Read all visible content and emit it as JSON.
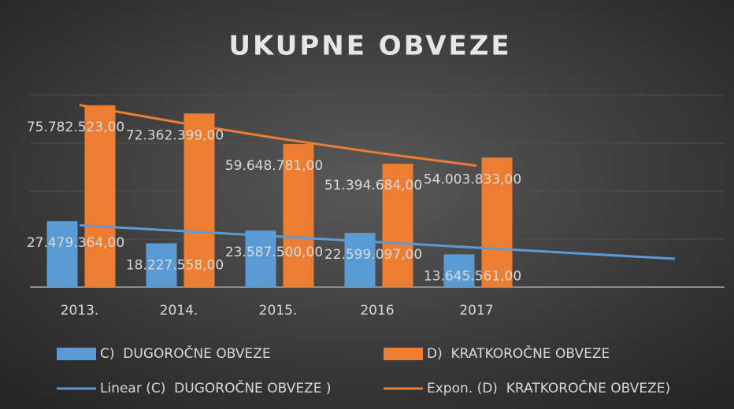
{
  "chart_data": {
    "type": "bar",
    "title": "UKUPNE OBVEZE",
    "categories": [
      "2013.",
      "2014.",
      "2015.",
      "2016",
      "2017",
      null,
      null
    ],
    "series": [
      {
        "name": "C)  DUGOROČNE OBVEZE",
        "color": "#5b9bd5",
        "kind": "bar",
        "values": [
          27479364,
          18227558,
          23587500,
          22599097,
          13645561,
          null,
          null
        ],
        "value_labels": [
          "27.479.364,00",
          "18.227.558,00",
          "23.587.500,00",
          "22.599.097,00",
          "13.645.561,00",
          null,
          null
        ]
      },
      {
        "name": "D)  KRATKOROČNE OBVEZE",
        "color": "#ed7d31",
        "kind": "bar",
        "values": [
          75782523,
          72362399,
          59648781,
          51394684,
          54003833,
          null,
          null
        ],
        "value_labels": [
          "75.782.523,00",
          "72.362.399,00",
          "59.648.781,00",
          "51.394.684,00",
          "54.003.833,00",
          null,
          null
        ]
      },
      {
        "name": "Linear (C)  DUGOROČNE OBVEZE )",
        "color": "#5b9bd5",
        "kind": "line",
        "values": [
          25768000,
          23438000,
          21108000,
          18778000,
          16448000,
          14118000,
          11788000
        ]
      },
      {
        "name": "Expon. (D)  KRATKOROČNE OBVEZE)",
        "color": "#ed7d31",
        "kind": "line",
        "values": [
          75900000,
          68600000,
          62000000,
          56000000,
          50600000,
          null,
          null
        ]
      }
    ],
    "ylim": [
      0,
      80000000
    ],
    "yticks": [
      0,
      20000000,
      40000000,
      60000000,
      80000000
    ],
    "grid": true
  }
}
